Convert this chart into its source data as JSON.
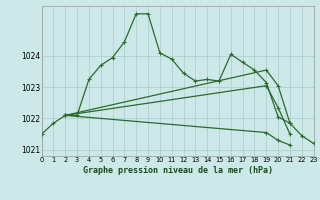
{
  "title": "Graphe pression niveau de la mer (hPa)",
  "background_color": "#cce8e8",
  "grid_color": "#aacccc",
  "line_color": "#2d6a2d",
  "xlim": [
    0,
    23
  ],
  "ylim": [
    1020.8,
    1025.6
  ],
  "yticks": [
    1021,
    1022,
    1023,
    1024
  ],
  "xticks": [
    0,
    1,
    2,
    3,
    4,
    5,
    6,
    7,
    8,
    9,
    10,
    11,
    12,
    13,
    14,
    15,
    16,
    17,
    18,
    19,
    20,
    21,
    22,
    23
  ],
  "main": {
    "x": [
      0,
      1,
      2,
      3,
      4,
      5,
      6,
      7,
      8,
      9,
      10,
      11,
      12,
      13,
      14,
      15,
      16,
      17,
      18,
      19,
      20,
      21,
      22,
      23
    ],
    "y": [
      1021.5,
      1021.85,
      1022.1,
      1022.1,
      1023.25,
      1023.7,
      1023.95,
      1024.45,
      1025.35,
      1025.35,
      1024.1,
      1023.9,
      1023.45,
      1023.2,
      1023.25,
      1023.2,
      1024.05,
      1023.8,
      1023.55,
      1023.15,
      1022.05,
      1021.85,
      1021.45,
      1021.2
    ]
  },
  "fan_lines": [
    {
      "x": [
        2,
        19,
        20,
        21
      ],
      "y": [
        1022.1,
        1023.55,
        1023.05,
        1021.85
      ]
    },
    {
      "x": [
        2,
        19,
        20,
        21
      ],
      "y": [
        1022.1,
        1023.05,
        1022.3,
        1021.55
      ]
    },
    {
      "x": [
        2,
        19,
        20,
        21
      ],
      "y": [
        1022.1,
        1021.55,
        1021.3,
        1021.15
      ]
    }
  ]
}
